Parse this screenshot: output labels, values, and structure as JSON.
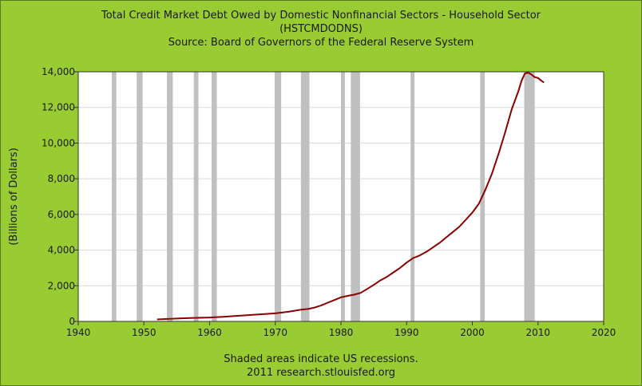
{
  "header": {
    "title_line1": "Total Credit Market Debt Owed by Domestic Nonfinancial Sectors - Household Sector",
    "title_line2": "(HSTCMDODNS)",
    "title_line3": "Source: Board of Governors of the Federal Reserve System"
  },
  "footer": {
    "line1": "Shaded areas indicate US recessions.",
    "line2": "2011 research.stlouisfed.org"
  },
  "colors": {
    "frame": "#99cc33",
    "plot_bg": "#ffffff",
    "recession": "#c0c0c0",
    "line": "#8b0000"
  },
  "chart_data": {
    "type": "line",
    "title": "Total Credit Market Debt Owed by Domestic Nonfinancial Sectors - Household Sector (HSTCMDODNS)",
    "ylabel": "(Billions of Dollars)",
    "xlabel": "",
    "xlim": [
      1940,
      2020
    ],
    "ylim": [
      0,
      14000
    ],
    "grid": true,
    "x_ticks": [
      1940,
      1950,
      1960,
      1970,
      1980,
      1990,
      2000,
      2010,
      2020
    ],
    "y_ticks": [
      0,
      2000,
      4000,
      6000,
      8000,
      10000,
      12000,
      14000
    ],
    "y_tick_labels": [
      "0",
      "2,000",
      "4,000",
      "6,000",
      "8,000",
      "10,000",
      "12,000",
      "14,000"
    ],
    "recessions": [
      [
        1945.1,
        1945.8
      ],
      [
        1948.9,
        1949.8
      ],
      [
        1953.5,
        1954.4
      ],
      [
        1957.6,
        1958.3
      ],
      [
        1960.3,
        1961.1
      ],
      [
        1969.9,
        1970.9
      ],
      [
        1973.9,
        1975.2
      ],
      [
        1980.0,
        1980.6
      ],
      [
        1981.5,
        1982.9
      ],
      [
        1990.6,
        1991.2
      ],
      [
        2001.2,
        2001.9
      ],
      [
        2007.9,
        2009.5
      ]
    ],
    "series": [
      {
        "x": [
          1952.0,
          1953,
          1955,
          1957,
          1960,
          1962,
          1965,
          1967,
          1970,
          1972,
          1974,
          1975,
          1976,
          1977,
          1978,
          1979,
          1980,
          1981,
          1982,
          1983,
          1984,
          1985,
          1986,
          1987,
          1988,
          1989,
          1990,
          1991,
          1992,
          1993,
          1994,
          1995,
          1996,
          1997,
          1998,
          1999,
          2000,
          2001,
          2002,
          2003,
          2004,
          2005,
          2006,
          2007,
          2007.5,
          2008,
          2008.5,
          2009,
          2009.5,
          2010,
          2010.5,
          2010.9
        ],
        "y": [
          110,
          130,
          160,
          190,
          220,
          260,
          330,
          380,
          450,
          540,
          660,
          700,
          780,
          900,
          1050,
          1200,
          1350,
          1430,
          1500,
          1600,
          1820,
          2050,
          2300,
          2500,
          2750,
          3000,
          3300,
          3550,
          3700,
          3900,
          4150,
          4400,
          4700,
          5000,
          5300,
          5700,
          6100,
          6600,
          7400,
          8300,
          9400,
          10600,
          11900,
          12900,
          13500,
          13900,
          13950,
          13850,
          13700,
          13650,
          13500,
          13400
        ]
      }
    ]
  }
}
